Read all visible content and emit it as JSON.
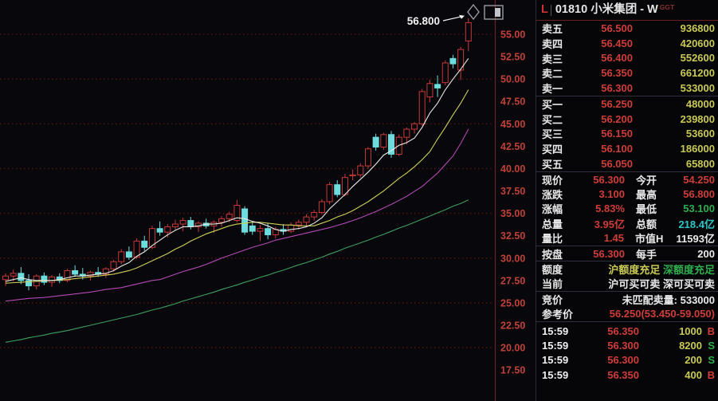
{
  "colors": {
    "up_red": "#c83939",
    "down_cyan": "#6cdcdc",
    "volume_yellow": "#c9c955",
    "axis_label_red": "#c04238",
    "grid_red": "#4a1717",
    "annotation_white": "#f2f2f2",
    "panel_border_red": "#6b2020"
  },
  "panel": {
    "header": {
      "marker": "L",
      "title": "01810 小米集团 - W",
      "sub": "GGT"
    },
    "asks": [
      {
        "label": "卖五",
        "price": "56.500",
        "volume": "936800"
      },
      {
        "label": "卖四",
        "price": "56.450",
        "volume": "420600"
      },
      {
        "label": "卖三",
        "price": "56.400",
        "volume": "552600"
      },
      {
        "label": "卖二",
        "price": "56.350",
        "volume": "661200"
      },
      {
        "label": "卖一",
        "price": "56.300",
        "volume": "533000"
      }
    ],
    "bids": [
      {
        "label": "买一",
        "price": "56.250",
        "volume": "48000"
      },
      {
        "label": "买二",
        "price": "56.200",
        "volume": "239800"
      },
      {
        "label": "买三",
        "price": "56.150",
        "volume": "53600"
      },
      {
        "label": "买四",
        "price": "56.100",
        "volume": "186000"
      },
      {
        "label": "买五",
        "price": "56.050",
        "volume": "65800"
      }
    ],
    "info": [
      {
        "l1": "现价",
        "v1": "56.300",
        "l2": "今开",
        "v2": "54.250"
      },
      {
        "l1": "涨跌",
        "v1": "3.100",
        "l2": "最高",
        "v2": "56.800"
      },
      {
        "l1": "涨幅",
        "v1": "5.83%",
        "l2": "最低",
        "v2": "53.100"
      },
      {
        "l1": "总量",
        "v1": "3.95亿",
        "l2": "总额",
        "v2": "218.4亿"
      },
      {
        "l1": "量比",
        "v1": "1.45",
        "l2": "市值H",
        "v2": "11593亿"
      }
    ],
    "board": {
      "l1": "按盘",
      "v1": "56.300",
      "l2": "每手",
      "v2": "200"
    },
    "quota": {
      "label": "额度",
      "sh": "沪额度充足",
      "sz": "深额度充足"
    },
    "current": {
      "label": "当前",
      "sh": "沪可买可卖",
      "sz": "深可买可卖"
    },
    "auction": {
      "label": "竞价",
      "value": "未匹配卖量: 533000"
    },
    "refprice": {
      "label": "参考价",
      "value": "56.250(53.450-59.050)"
    },
    "ticks": [
      {
        "time": "15:59",
        "price": "56.350",
        "volume": "1000",
        "side": "B"
      },
      {
        "time": "15:59",
        "price": "56.300",
        "volume": "8200",
        "side": "S"
      },
      {
        "time": "15:59",
        "price": "56.300",
        "volume": "200",
        "side": "S"
      },
      {
        "time": "15:59",
        "price": "56.350",
        "volume": "400",
        "side": "B"
      }
    ]
  },
  "chart_data": {
    "type": "candlestick",
    "symbol": "01810",
    "name": "小米集团",
    "period": "W",
    "market_tag": "GGT",
    "annotation": "56.800",
    "y_axis": {
      "labels": [
        "55.00",
        "52.50",
        "50.00",
        "47.50",
        "45.00",
        "42.50",
        "40.00",
        "37.50",
        "35.00",
        "32.50",
        "30.00",
        "27.50",
        "25.00",
        "22.50",
        "20.00",
        "17.50"
      ],
      "prices": [
        55,
        52.5,
        50,
        47.5,
        45,
        42.5,
        40,
        37.5,
        35,
        32.5,
        30,
        27.5,
        25,
        22.5,
        20,
        17.5
      ],
      "grid_prices": [
        55,
        50,
        45,
        40,
        35,
        30,
        25,
        20
      ]
    },
    "candles": [
      [
        27.6,
        28.3,
        26.9,
        28.0
      ],
      [
        28.0,
        28.7,
        27.4,
        28.3
      ],
      [
        28.3,
        29.0,
        27.1,
        27.5
      ],
      [
        27.5,
        28.2,
        26.4,
        26.9
      ],
      [
        26.9,
        28.2,
        26.5,
        28.0
      ],
      [
        28.0,
        28.4,
        27.0,
        27.3
      ],
      [
        27.3,
        28.1,
        26.8,
        27.9
      ],
      [
        27.9,
        28.3,
        27.2,
        27.5
      ],
      [
        27.5,
        28.8,
        27.3,
        28.6
      ],
      [
        28.6,
        29.2,
        27.9,
        28.2
      ],
      [
        28.2,
        28.9,
        27.6,
        28.0
      ],
      [
        28.0,
        28.6,
        27.5,
        28.4
      ],
      [
        28.4,
        29.0,
        27.9,
        28.2
      ],
      [
        28.2,
        29.0,
        27.8,
        28.8
      ],
      [
        28.8,
        29.8,
        28.5,
        29.6
      ],
      [
        29.6,
        31.0,
        29.3,
        30.7
      ],
      [
        30.7,
        31.3,
        29.8,
        30.1
      ],
      [
        30.1,
        32.2,
        29.9,
        31.9
      ],
      [
        31.9,
        32.5,
        30.8,
        31.2
      ],
      [
        31.2,
        33.6,
        31.0,
        33.3
      ],
      [
        33.3,
        34.1,
        32.5,
        32.9
      ],
      [
        32.9,
        33.8,
        32.3,
        33.5
      ],
      [
        33.5,
        34.3,
        33.1,
        33.8
      ],
      [
        33.8,
        34.5,
        33.0,
        34.2
      ],
      [
        34.2,
        34.6,
        33.2,
        33.5
      ],
      [
        33.5,
        34.1,
        32.9,
        33.9
      ],
      [
        33.9,
        34.4,
        33.3,
        33.6
      ],
      [
        33.6,
        34.2,
        32.8,
        34.0
      ],
      [
        34.0,
        34.7,
        33.5,
        34.4
      ],
      [
        34.4,
        35.2,
        34.0,
        34.9
      ],
      [
        34.2,
        36.5,
        34.0,
        35.9
      ],
      [
        35.5,
        35.8,
        32.6,
        32.9
      ],
      [
        33.6,
        34.1,
        32.6,
        33.0
      ],
      [
        33.0,
        33.7,
        31.9,
        33.3
      ],
      [
        33.3,
        33.9,
        32.1,
        32.6
      ],
      [
        32.6,
        33.5,
        32.2,
        33.2
      ],
      [
        33.2,
        33.8,
        32.6,
        33.0
      ],
      [
        33.0,
        34.0,
        32.8,
        33.7
      ],
      [
        33.7,
        34.3,
        33.2,
        34.0
      ],
      [
        34.0,
        34.9,
        33.6,
        34.6
      ],
      [
        34.6,
        35.4,
        34.2,
        35.1
      ],
      [
        35.1,
        36.6,
        34.9,
        36.3
      ],
      [
        36.3,
        38.5,
        36.0,
        38.2
      ],
      [
        38.2,
        38.7,
        36.8,
        37.1
      ],
      [
        37.1,
        39.4,
        36.9,
        39.0
      ],
      [
        39.2,
        39.9,
        38.7,
        39.3
      ],
      [
        39.3,
        40.6,
        39.0,
        40.3
      ],
      [
        40.3,
        42.4,
        40.0,
        42.2
      ],
      [
        43.5,
        43.9,
        42.0,
        42.4
      ],
      [
        42.4,
        44.0,
        42.1,
        43.8
      ],
      [
        43.8,
        44.2,
        41.2,
        41.6
      ],
      [
        41.6,
        43.8,
        41.4,
        43.5
      ],
      [
        43.5,
        44.6,
        42.7,
        44.4
      ],
      [
        44.4,
        45.2,
        43.9,
        45.0
      ],
      [
        45.0,
        48.9,
        44.8,
        48.6
      ],
      [
        48.0,
        49.9,
        47.4,
        49.5
      ],
      [
        49.4,
        50.4,
        48.0,
        49.0
      ],
      [
        49.6,
        52.1,
        49.3,
        51.8
      ],
      [
        52.3,
        52.7,
        51.2,
        51.7
      ],
      [
        51.0,
        53.6,
        49.9,
        53.3
      ],
      [
        54.25,
        56.8,
        53.1,
        56.3
      ]
    ],
    "ma_lines": [
      {
        "name": "green-ma",
        "color": "#3f9e62",
        "values": [
          20.6,
          20.75,
          20.9,
          21.1,
          21.25,
          21.4,
          21.6,
          21.75,
          21.9,
          22.1,
          22.3,
          22.5,
          22.7,
          22.9,
          23.1,
          23.3,
          23.5,
          23.7,
          23.95,
          24.2,
          24.4,
          24.65,
          24.9,
          25.2,
          25.45,
          25.7,
          25.95,
          26.2,
          26.5,
          26.75,
          27.0,
          27.3,
          27.55,
          27.85,
          28.1,
          28.4,
          28.65,
          28.95,
          29.25,
          29.5,
          29.8,
          30.1,
          30.45,
          30.75,
          31.1,
          31.4,
          31.7,
          32.0,
          32.35,
          32.65,
          33.0,
          33.35,
          33.65,
          34.0,
          34.35,
          34.7,
          35.05,
          35.4,
          35.8,
          36.1,
          36.5
        ]
      },
      {
        "name": "magenta-ma",
        "color": "#b44ab4",
        "values": [
          25.2,
          25.3,
          25.4,
          25.5,
          25.55,
          25.6,
          25.7,
          25.8,
          25.9,
          26.0,
          26.1,
          26.2,
          26.35,
          26.5,
          26.6,
          26.7,
          26.9,
          27.1,
          27.3,
          27.5,
          27.6,
          27.9,
          28.2,
          28.5,
          28.75,
          29.0,
          29.3,
          29.65,
          30.0,
          30.3,
          30.6,
          30.9,
          31.2,
          31.45,
          31.7,
          32.0,
          32.2,
          32.4,
          32.6,
          32.8,
          33.0,
          33.2,
          33.4,
          33.65,
          33.9,
          34.2,
          34.5,
          34.85,
          35.2,
          35.6,
          36.0,
          36.45,
          36.9,
          37.45,
          38.0,
          38.75,
          39.5,
          40.45,
          41.4,
          42.8,
          44.4
        ]
      },
      {
        "name": "yellow-ma",
        "color": "#cfcf58",
        "values": [
          27.2,
          27.25,
          27.3,
          27.35,
          27.4,
          27.45,
          27.5,
          27.55,
          27.6,
          27.7,
          27.8,
          27.9,
          28.0,
          28.1,
          28.2,
          28.4,
          28.6,
          28.9,
          29.3,
          29.7,
          30.1,
          30.5,
          31.0,
          31.4,
          31.9,
          32.3,
          32.7,
          33.0,
          33.3,
          33.6,
          33.8,
          33.9,
          34.0,
          34.0,
          33.9,
          33.8,
          33.7,
          33.7,
          33.6,
          33.6,
          33.6,
          33.9,
          34.2,
          34.6,
          34.9,
          35.3,
          35.8,
          36.3,
          36.9,
          37.5,
          38.2,
          38.9,
          39.5,
          40.2,
          41.0,
          41.9,
          43.3,
          44.6,
          46.0,
          47.3,
          48.8
        ]
      },
      {
        "name": "white-ma",
        "color": "#e9e9e4",
        "values": [
          27.4,
          27.6,
          27.8,
          27.6,
          27.5,
          27.5,
          27.5,
          27.6,
          27.8,
          28.0,
          28.0,
          28.1,
          28.2,
          28.3,
          28.6,
          29.1,
          29.5,
          30.2,
          30.7,
          31.4,
          32.0,
          32.6,
          33.1,
          33.5,
          33.5,
          33.6,
          33.8,
          33.8,
          33.9,
          34.2,
          34.5,
          34.4,
          34.1,
          33.9,
          33.6,
          33.2,
          33.0,
          33.2,
          33.3,
          33.5,
          33.9,
          34.5,
          35.5,
          36.3,
          37.1,
          38.0,
          38.8,
          39.6,
          40.5,
          41.5,
          42.0,
          42.6,
          42.9,
          43.4,
          44.6,
          46.2,
          47.3,
          48.8,
          50.0,
          51.1,
          52.3
        ]
      }
    ]
  }
}
